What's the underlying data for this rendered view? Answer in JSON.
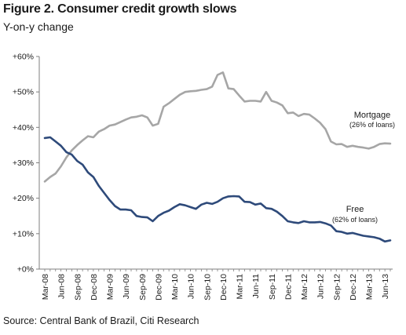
{
  "header": {
    "title": "Figure 2. Consumer credit growth slows",
    "subtitle": "Y-on-y change"
  },
  "footer": {
    "source": "Source: Central Bank of Brazil, Citi Research"
  },
  "colors": {
    "mortgage": "#a6a6a6",
    "free": "#2e4a7a",
    "axis": "#7f7f7f",
    "gridline": "#bfbfbf"
  },
  "chart_data": {
    "type": "line",
    "title": "Figure 2. Consumer credit growth slows",
    "subtitle": "Y-on-y change",
    "xlabel": "",
    "ylabel": "",
    "ylim": [
      0,
      60
    ],
    "yticks": [
      0,
      10,
      20,
      30,
      40,
      50,
      60
    ],
    "ytick_labels": [
      "+0%",
      "+10%",
      "+20%",
      "+30%",
      "+40%",
      "+50%",
      "+60%"
    ],
    "xlim": [
      "2008-03",
      "2013-07"
    ],
    "xtick_labels": [
      "Mar-08",
      "Jun-08",
      "Sep-08",
      "Dec-08",
      "Mar-09",
      "Jun-09",
      "Sep-09",
      "Dec-09",
      "Mar-10",
      "Jun-10",
      "Sep-10",
      "Dec-10",
      "Mar-11",
      "Jun-11",
      "Sep-11",
      "Dec-11",
      "Mar-12",
      "Jun-12",
      "Sep-12",
      "Dec-12",
      "Mar-13",
      "Jun-13"
    ],
    "grid": false,
    "legend": "inline labels at right",
    "x": [
      "2008-03",
      "2008-04",
      "2008-05",
      "2008-06",
      "2008-07",
      "2008-08",
      "2008-09",
      "2008-10",
      "2008-11",
      "2008-12",
      "2009-01",
      "2009-02",
      "2009-03",
      "2009-04",
      "2009-05",
      "2009-06",
      "2009-07",
      "2009-08",
      "2009-09",
      "2009-10",
      "2009-11",
      "2009-12",
      "2010-01",
      "2010-02",
      "2010-03",
      "2010-04",
      "2010-05",
      "2010-06",
      "2010-07",
      "2010-08",
      "2010-09",
      "2010-10",
      "2010-11",
      "2010-12",
      "2011-01",
      "2011-02",
      "2011-03",
      "2011-04",
      "2011-05",
      "2011-06",
      "2011-07",
      "2011-08",
      "2011-09",
      "2011-10",
      "2011-11",
      "2011-12",
      "2012-01",
      "2012-02",
      "2012-03",
      "2012-04",
      "2012-05",
      "2012-06",
      "2012-07",
      "2012-08",
      "2012-09",
      "2012-10",
      "2012-11",
      "2012-12",
      "2013-01",
      "2013-02",
      "2013-03",
      "2013-04",
      "2013-05",
      "2013-06",
      "2013-07"
    ],
    "series": [
      {
        "name": "Mortgage",
        "annotation": "(26% of loans)",
        "values": [
          24.7,
          26.0,
          27.0,
          29.0,
          31.5,
          33.5,
          35.0,
          36.3,
          37.5,
          37.2,
          38.8,
          39.5,
          40.5,
          40.8,
          41.5,
          42.2,
          42.8,
          43.0,
          43.4,
          42.8,
          40.5,
          41.0,
          45.8,
          46.8,
          48.0,
          49.2,
          50.0,
          50.2,
          50.3,
          50.6,
          50.8,
          51.5,
          54.8,
          55.5,
          51.0,
          50.8,
          49.0,
          47.3,
          47.5,
          47.5,
          47.3,
          50.0,
          47.5,
          47.0,
          46.2,
          44.0,
          44.2,
          43.2,
          43.8,
          43.6,
          42.5,
          41.3,
          39.5,
          36.0,
          35.2,
          35.3,
          34.5,
          34.8,
          34.5,
          34.3,
          34.0,
          34.5,
          35.3,
          35.5,
          35.4
        ]
      },
      {
        "name": "Free",
        "annotation": "(62% of loans)",
        "values": [
          37.0,
          37.2,
          36.0,
          34.8,
          33.0,
          32.3,
          30.5,
          29.5,
          27.3,
          26.0,
          23.5,
          21.5,
          19.5,
          17.8,
          16.8,
          16.8,
          16.6,
          15.0,
          14.7,
          14.6,
          13.5,
          15.0,
          15.9,
          16.5,
          17.5,
          18.3,
          18.0,
          17.5,
          17.0,
          18.2,
          18.7,
          18.4,
          19.0,
          20.0,
          20.5,
          20.6,
          20.5,
          19.0,
          18.9,
          18.2,
          18.5,
          17.2,
          17.0,
          16.2,
          15.0,
          13.5,
          13.2,
          13.0,
          13.5,
          13.2,
          13.2,
          13.3,
          12.9,
          12.3,
          10.7,
          10.5,
          10.0,
          10.2,
          9.8,
          9.4,
          9.2,
          9.0,
          8.6,
          7.8,
          8.1
        ]
      }
    ]
  }
}
